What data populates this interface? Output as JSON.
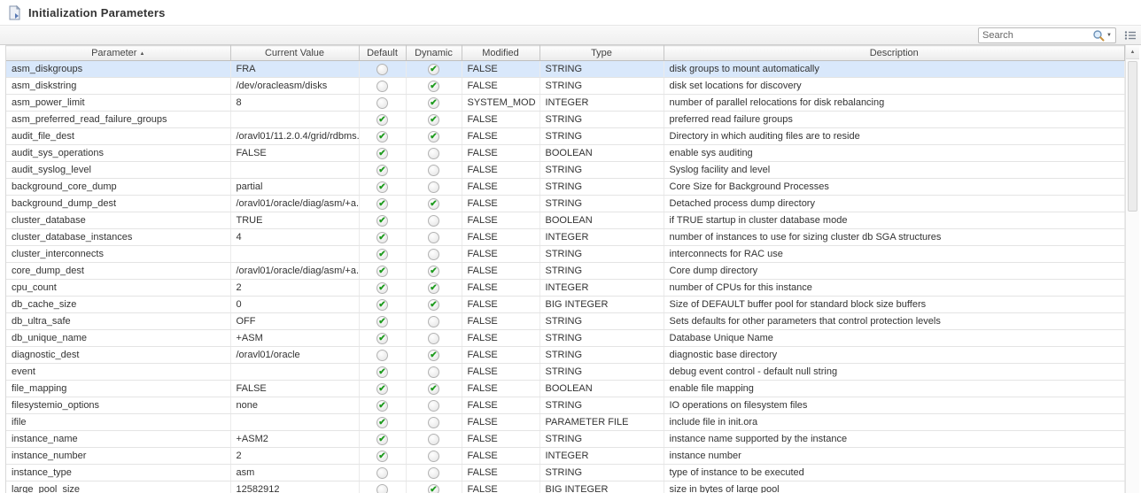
{
  "page": {
    "title": "Initialization Parameters"
  },
  "toolbar": {
    "search_placeholder": "Search",
    "icons": {
      "search": "magnifier-icon",
      "search_dropdown": "chevron-down-icon",
      "columns": "column-options-icon"
    }
  },
  "colors": {
    "selected_row": "#d9e8fb",
    "check_green": "#1e9b1e"
  },
  "table": {
    "columns": [
      {
        "key": "parameter",
        "label": "Parameter",
        "sort": "asc"
      },
      {
        "key": "current_value",
        "label": "Current Value"
      },
      {
        "key": "default",
        "label": "Default",
        "type": "flag"
      },
      {
        "key": "dynamic",
        "label": "Dynamic",
        "type": "flag"
      },
      {
        "key": "modified",
        "label": "Modified"
      },
      {
        "key": "type",
        "label": "Type"
      },
      {
        "key": "description",
        "label": "Description"
      }
    ],
    "rows": [
      {
        "parameter": "asm_diskgroups",
        "current_value": "FRA",
        "default": false,
        "dynamic": true,
        "modified": "FALSE",
        "type": "STRING",
        "description": "disk groups to mount automatically",
        "selected": true
      },
      {
        "parameter": "asm_diskstring",
        "current_value": "/dev/oracleasm/disks",
        "default": false,
        "dynamic": true,
        "modified": "FALSE",
        "type": "STRING",
        "description": "disk set locations for discovery"
      },
      {
        "parameter": "asm_power_limit",
        "current_value": "8",
        "default": false,
        "dynamic": true,
        "modified": "SYSTEM_MOD",
        "type": "INTEGER",
        "description": "number of parallel relocations for disk rebalancing"
      },
      {
        "parameter": "asm_preferred_read_failure_groups",
        "current_value": "",
        "default": true,
        "dynamic": true,
        "modified": "FALSE",
        "type": "STRING",
        "description": "preferred read failure groups"
      },
      {
        "parameter": "audit_file_dest",
        "current_value": "/oravl01/11.2.0.4/grid/rdbms...",
        "default": true,
        "dynamic": true,
        "modified": "FALSE",
        "type": "STRING",
        "description": "Directory in which auditing files are to reside"
      },
      {
        "parameter": "audit_sys_operations",
        "current_value": "FALSE",
        "default": true,
        "dynamic": false,
        "modified": "FALSE",
        "type": "BOOLEAN",
        "description": "enable sys auditing"
      },
      {
        "parameter": "audit_syslog_level",
        "current_value": "",
        "default": true,
        "dynamic": false,
        "modified": "FALSE",
        "type": "STRING",
        "description": "Syslog facility and level"
      },
      {
        "parameter": "background_core_dump",
        "current_value": "partial",
        "default": true,
        "dynamic": false,
        "modified": "FALSE",
        "type": "STRING",
        "description": "Core Size for Background Processes"
      },
      {
        "parameter": "background_dump_dest",
        "current_value": "/oravl01/oracle/diag/asm/+a...",
        "default": true,
        "dynamic": true,
        "modified": "FALSE",
        "type": "STRING",
        "description": "Detached process dump directory"
      },
      {
        "parameter": "cluster_database",
        "current_value": "TRUE",
        "default": true,
        "dynamic": false,
        "modified": "FALSE",
        "type": "BOOLEAN",
        "description": "if TRUE startup in cluster database mode"
      },
      {
        "parameter": "cluster_database_instances",
        "current_value": "4",
        "default": true,
        "dynamic": false,
        "modified": "FALSE",
        "type": "INTEGER",
        "description": "number of instances to use for sizing cluster db SGA structures"
      },
      {
        "parameter": "cluster_interconnects",
        "current_value": "",
        "default": true,
        "dynamic": false,
        "modified": "FALSE",
        "type": "STRING",
        "description": "interconnects for RAC use"
      },
      {
        "parameter": "core_dump_dest",
        "current_value": "/oravl01/oracle/diag/asm/+a...",
        "default": true,
        "dynamic": true,
        "modified": "FALSE",
        "type": "STRING",
        "description": "Core dump directory"
      },
      {
        "parameter": "cpu_count",
        "current_value": "2",
        "default": true,
        "dynamic": true,
        "modified": "FALSE",
        "type": "INTEGER",
        "description": "number of CPUs for this instance"
      },
      {
        "parameter": "db_cache_size",
        "current_value": "0",
        "default": true,
        "dynamic": true,
        "modified": "FALSE",
        "type": "BIG INTEGER",
        "description": "Size of DEFAULT buffer pool for standard block size buffers"
      },
      {
        "parameter": "db_ultra_safe",
        "current_value": "OFF",
        "default": true,
        "dynamic": false,
        "modified": "FALSE",
        "type": "STRING",
        "description": "Sets defaults for other parameters that control protection levels"
      },
      {
        "parameter": "db_unique_name",
        "current_value": "+ASM",
        "default": true,
        "dynamic": false,
        "modified": "FALSE",
        "type": "STRING",
        "description": "Database Unique Name"
      },
      {
        "parameter": "diagnostic_dest",
        "current_value": "/oravl01/oracle",
        "default": false,
        "dynamic": true,
        "modified": "FALSE",
        "type": "STRING",
        "description": "diagnostic base directory"
      },
      {
        "parameter": "event",
        "current_value": "",
        "default": true,
        "dynamic": false,
        "modified": "FALSE",
        "type": "STRING",
        "description": "debug event control - default null string"
      },
      {
        "parameter": "file_mapping",
        "current_value": "FALSE",
        "default": true,
        "dynamic": true,
        "modified": "FALSE",
        "type": "BOOLEAN",
        "description": "enable file mapping"
      },
      {
        "parameter": "filesystemio_options",
        "current_value": "none",
        "default": true,
        "dynamic": false,
        "modified": "FALSE",
        "type": "STRING",
        "description": "IO operations on filesystem files"
      },
      {
        "parameter": "ifile",
        "current_value": "",
        "default": true,
        "dynamic": false,
        "modified": "FALSE",
        "type": "PARAMETER FILE",
        "description": "include file in init.ora"
      },
      {
        "parameter": "instance_name",
        "current_value": "+ASM2",
        "default": true,
        "dynamic": false,
        "modified": "FALSE",
        "type": "STRING",
        "description": "instance name supported by the instance"
      },
      {
        "parameter": "instance_number",
        "current_value": "2",
        "default": true,
        "dynamic": false,
        "modified": "FALSE",
        "type": "INTEGER",
        "description": "instance number"
      },
      {
        "parameter": "instance_type",
        "current_value": "asm",
        "default": false,
        "dynamic": false,
        "modified": "FALSE",
        "type": "STRING",
        "description": "type of instance to be executed"
      },
      {
        "parameter": "large_pool_size",
        "current_value": "12582912",
        "default": false,
        "dynamic": true,
        "modified": "FALSE",
        "type": "BIG INTEGER",
        "description": "size in bytes of large pool"
      }
    ]
  }
}
